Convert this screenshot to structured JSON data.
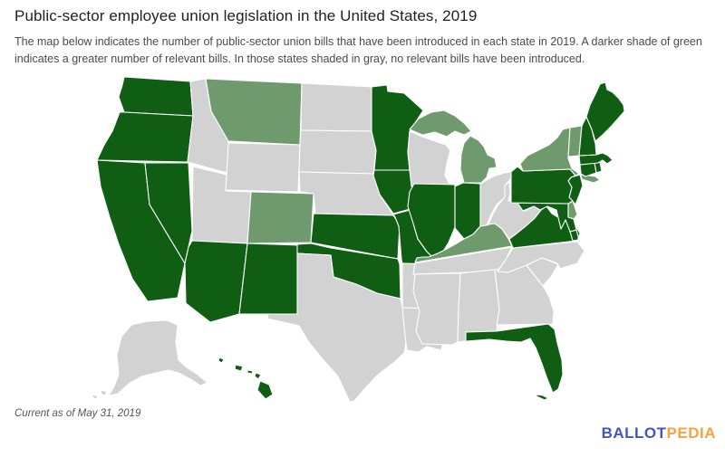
{
  "header": {
    "title": "Public-sector employee union legislation in the United States, 2019",
    "description": "The map below indicates the number of public-sector union bills that have been introduced in each state in 2019. A darker shade of green indicates a greater number of relevant bills. In those states shaded in gray, no relevant bills have been introduced."
  },
  "map": {
    "colors": {
      "more_bills": "#0f5e14",
      "fewer_bills": "#6f9a6e",
      "no_bills": "#d2d2d2",
      "border": "#ffffff"
    },
    "legend_note": "darker green = more bills; gray = none",
    "states": [
      {
        "abbr": "WA",
        "name": "Washington",
        "level": "more_bills"
      },
      {
        "abbr": "OR",
        "name": "Oregon",
        "level": "more_bills"
      },
      {
        "abbr": "CA",
        "name": "California",
        "level": "more_bills"
      },
      {
        "abbr": "NV",
        "name": "Nevada",
        "level": "more_bills"
      },
      {
        "abbr": "ID",
        "name": "Idaho",
        "level": "no_bills"
      },
      {
        "abbr": "MT",
        "name": "Montana",
        "level": "fewer_bills"
      },
      {
        "abbr": "WY",
        "name": "Wyoming",
        "level": "no_bills"
      },
      {
        "abbr": "UT",
        "name": "Utah",
        "level": "no_bills"
      },
      {
        "abbr": "CO",
        "name": "Colorado",
        "level": "fewer_bills"
      },
      {
        "abbr": "AZ",
        "name": "Arizona",
        "level": "more_bills"
      },
      {
        "abbr": "NM",
        "name": "New Mexico",
        "level": "more_bills"
      },
      {
        "abbr": "ND",
        "name": "North Dakota",
        "level": "no_bills"
      },
      {
        "abbr": "SD",
        "name": "South Dakota",
        "level": "no_bills"
      },
      {
        "abbr": "NE",
        "name": "Nebraska",
        "level": "no_bills"
      },
      {
        "abbr": "KS",
        "name": "Kansas",
        "level": "more_bills"
      },
      {
        "abbr": "OK",
        "name": "Oklahoma",
        "level": "more_bills"
      },
      {
        "abbr": "TX",
        "name": "Texas",
        "level": "no_bills"
      },
      {
        "abbr": "MN",
        "name": "Minnesota",
        "level": "more_bills"
      },
      {
        "abbr": "IA",
        "name": "Iowa",
        "level": "more_bills"
      },
      {
        "abbr": "MO",
        "name": "Missouri",
        "level": "more_bills"
      },
      {
        "abbr": "AR",
        "name": "Arkansas",
        "level": "no_bills"
      },
      {
        "abbr": "LA",
        "name": "Louisiana",
        "level": "no_bills"
      },
      {
        "abbr": "WI",
        "name": "Wisconsin",
        "level": "no_bills"
      },
      {
        "abbr": "MI",
        "name": "Michigan",
        "level": "fewer_bills"
      },
      {
        "abbr": "IL",
        "name": "Illinois",
        "level": "more_bills"
      },
      {
        "abbr": "IN",
        "name": "Indiana",
        "level": "more_bills"
      },
      {
        "abbr": "OH",
        "name": "Ohio",
        "level": "no_bills"
      },
      {
        "abbr": "KY",
        "name": "Kentucky",
        "level": "fewer_bills"
      },
      {
        "abbr": "TN",
        "name": "Tennessee",
        "level": "no_bills"
      },
      {
        "abbr": "MS",
        "name": "Mississippi",
        "level": "no_bills"
      },
      {
        "abbr": "AL",
        "name": "Alabama",
        "level": "no_bills"
      },
      {
        "abbr": "GA",
        "name": "Georgia",
        "level": "no_bills"
      },
      {
        "abbr": "FL",
        "name": "Florida",
        "level": "more_bills"
      },
      {
        "abbr": "SC",
        "name": "South Carolina",
        "level": "no_bills"
      },
      {
        "abbr": "NC",
        "name": "North Carolina",
        "level": "no_bills"
      },
      {
        "abbr": "VA",
        "name": "Virginia",
        "level": "more_bills"
      },
      {
        "abbr": "WV",
        "name": "West Virginia",
        "level": "no_bills"
      },
      {
        "abbr": "MD",
        "name": "Maryland",
        "level": "more_bills"
      },
      {
        "abbr": "DE",
        "name": "Delaware",
        "level": "fewer_bills"
      },
      {
        "abbr": "NJ",
        "name": "New Jersey",
        "level": "more_bills"
      },
      {
        "abbr": "PA",
        "name": "Pennsylvania",
        "level": "more_bills"
      },
      {
        "abbr": "NY",
        "name": "New York",
        "level": "fewer_bills"
      },
      {
        "abbr": "CT",
        "name": "Connecticut",
        "level": "more_bills"
      },
      {
        "abbr": "RI",
        "name": "Rhode Island",
        "level": "more_bills"
      },
      {
        "abbr": "MA",
        "name": "Massachusetts",
        "level": "more_bills"
      },
      {
        "abbr": "VT",
        "name": "Vermont",
        "level": "fewer_bills"
      },
      {
        "abbr": "NH",
        "name": "New Hampshire",
        "level": "more_bills"
      },
      {
        "abbr": "ME",
        "name": "Maine",
        "level": "more_bills"
      },
      {
        "abbr": "AK",
        "name": "Alaska",
        "level": "no_bills"
      },
      {
        "abbr": "HI",
        "name": "Hawaii",
        "level": "more_bills"
      }
    ]
  },
  "footer": {
    "note": "Current as of May 31, 2019"
  },
  "logo": {
    "text_primary": "BALLOT",
    "text_secondary": "PEDIA",
    "color_primary": "#4456bd",
    "color_secondary": "#f9a13d"
  }
}
